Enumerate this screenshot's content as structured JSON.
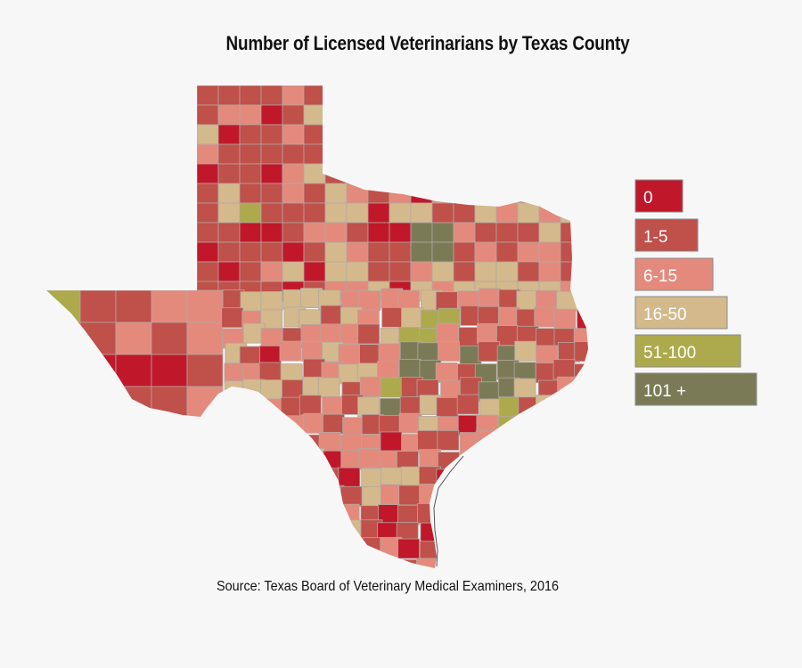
{
  "title": "Number of Licensed Veterinarians by Texas County",
  "source": "Source:  Texas Board of Veterinary Medical Examiners, 2016",
  "colors": {
    "zero": "#c0182a",
    "one_to_five": "#c0504a",
    "six_to_fifteen": "#e38a7c",
    "sixteen_to_fifty": "#d4b98c",
    "fifty_one_to_hundred": "#adaa4e",
    "hundred_one_plus": "#7a7b56",
    "border": "#b3a7a0"
  },
  "legend": [
    {
      "label": "0",
      "color": "#c0182a",
      "text_color": "#ffffff"
    },
    {
      "label": "1-5",
      "color": "#c0504a",
      "text_color": "#ffffff"
    },
    {
      "label": "6-15",
      "color": "#e38a7c",
      "text_color": "#ffffff"
    },
    {
      "label": "16-50",
      "color": "#d4b98c",
      "text_color": "#ffffff"
    },
    {
      "label": "51-100",
      "color": "#adaa4e",
      "text_color": "#ffffff"
    },
    {
      "label": "101 +",
      "color": "#7a7b56",
      "text_color": "#ffffff"
    }
  ]
}
